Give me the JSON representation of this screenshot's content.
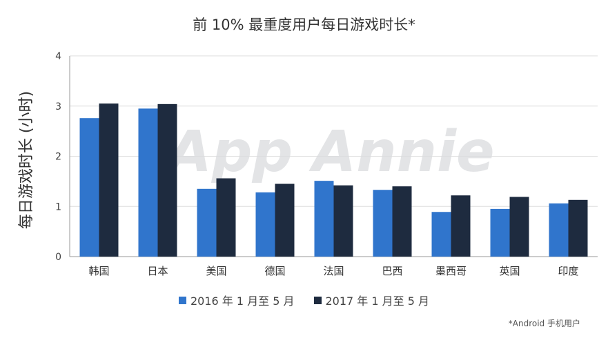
{
  "chart_data": {
    "type": "bar",
    "title": "前 10% 最重度用户每日游戏时长*",
    "ylabel": "每日游戏时长 (小时)",
    "xlabel": "",
    "ylim": [
      0,
      4
    ],
    "yticks": [
      0,
      1,
      2,
      3,
      4
    ],
    "grid": true,
    "legend_position": "bottom",
    "categories": [
      "韩国",
      "日本",
      "美国",
      "德国",
      "法国",
      "巴西",
      "墨西哥",
      "英国",
      "印度"
    ],
    "series": [
      {
        "name": "2016 年 1 月至 5 月",
        "color": "#3075CC",
        "values": [
          2.76,
          2.95,
          1.35,
          1.28,
          1.51,
          1.33,
          0.89,
          0.95,
          1.06
        ]
      },
      {
        "name": "2017 年 1 月至 5 月",
        "color": "#1E2B3F",
        "values": [
          3.05,
          3.04,
          1.56,
          1.45,
          1.42,
          1.4,
          1.22,
          1.19,
          1.13
        ]
      }
    ],
    "footnote": "*Android 手机用户",
    "watermark": "App Annie"
  }
}
